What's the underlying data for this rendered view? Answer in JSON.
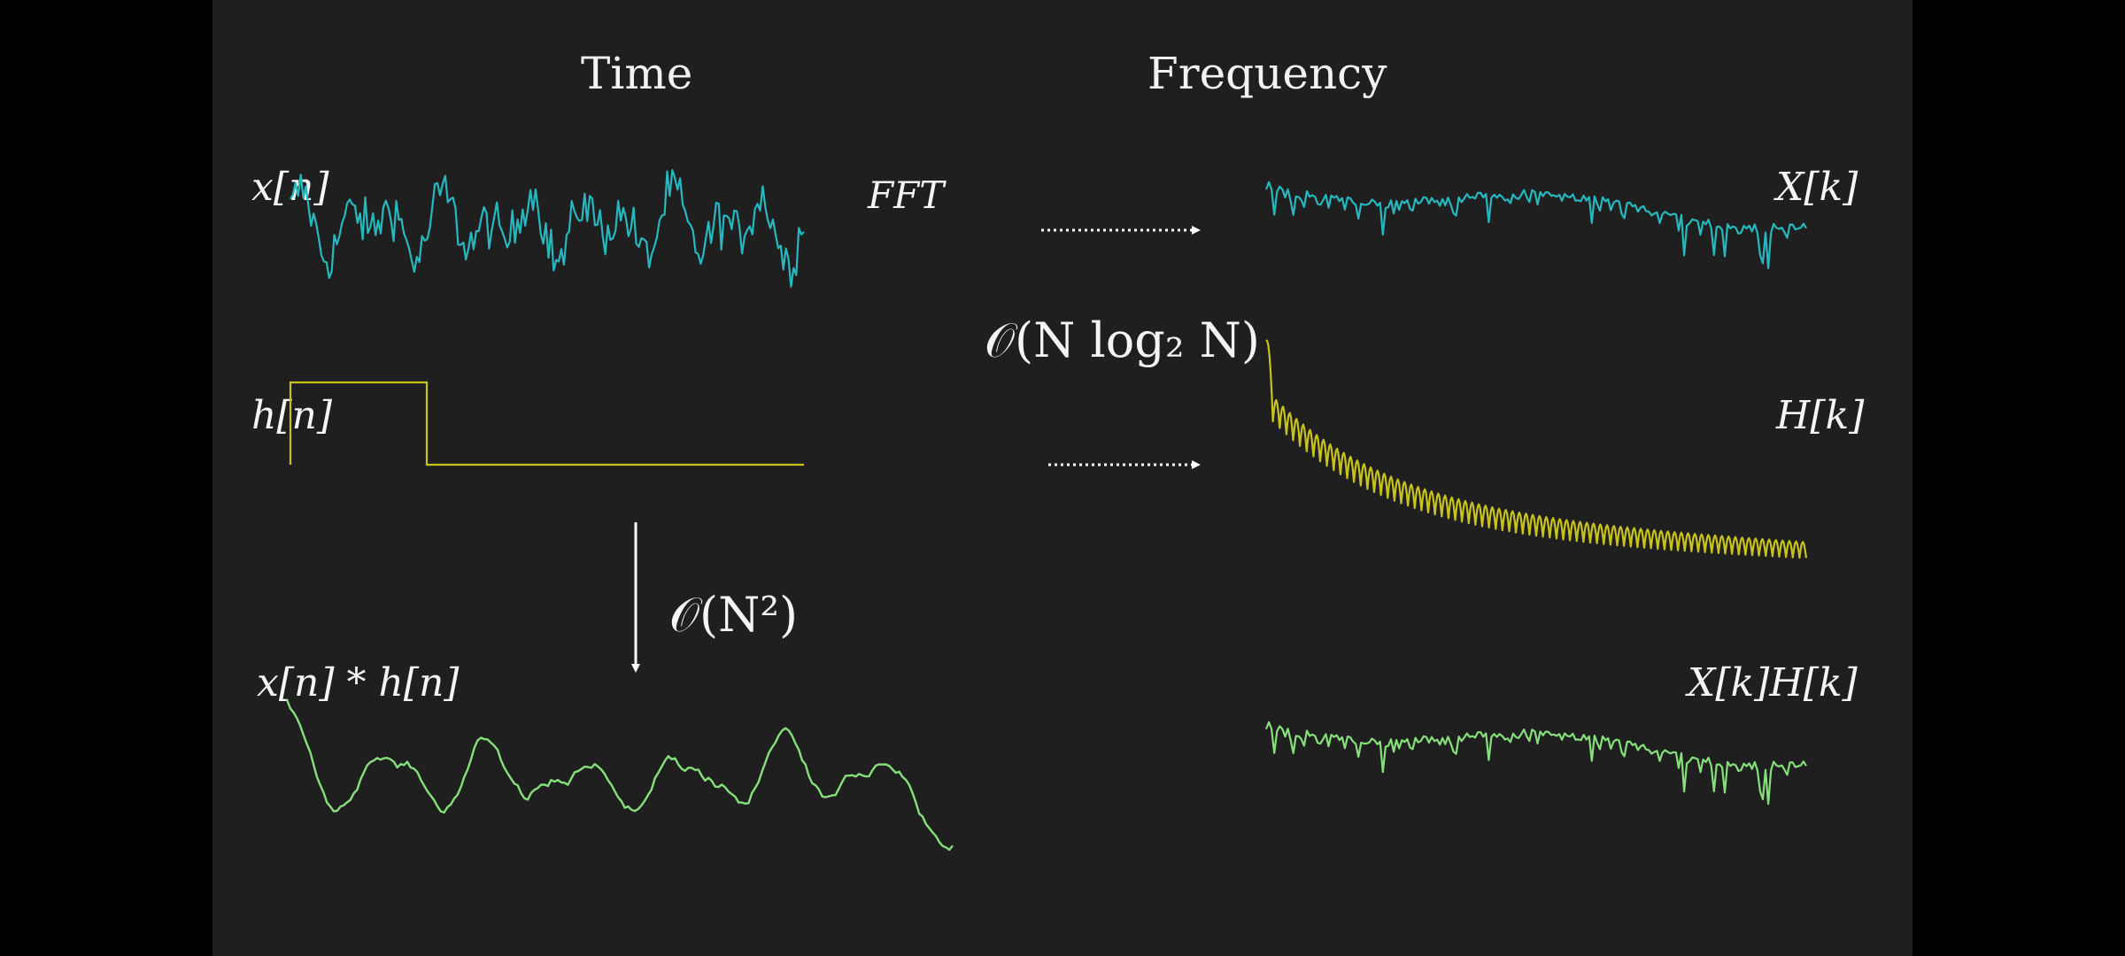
{
  "headings": {
    "time": "Time",
    "frequency": "Frequency"
  },
  "labels": {
    "x_n": "x[n]",
    "h_n": "h[n]",
    "conv": "x[n] * h[n]",
    "X_k": "X[k]",
    "H_k": "H[k]",
    "XH_k": "X[k]H[k]",
    "fft": "FFT",
    "fft_cost": "𝒪(N log₂ N)",
    "direct_cost": "𝒪(N²)"
  },
  "colors": {
    "background": "#1f1f1f",
    "signal": "#26b8bf",
    "filter": "#c8c21c",
    "result": "#86e07a",
    "arrow": "#ffffff"
  },
  "signals": {
    "x_n": {
      "description_kind": "noisy",
      "samples": 200
    },
    "h_n": {
      "kind": "rectangular pulse",
      "pulse_fraction": 0.25
    },
    "conv": {
      "kind": "smoothed",
      "samples": 200
    },
    "X_k": {
      "kind": "noisy decaying spectrum",
      "samples": 200
    },
    "H_k": {
      "kind": "sinc magnitude",
      "lobes": 80
    },
    "XH_k": {
      "kind": "noisy decaying spectrum",
      "samples": 200
    }
  }
}
